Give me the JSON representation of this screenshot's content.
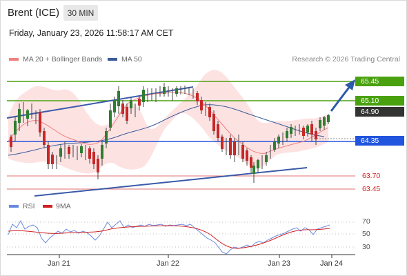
{
  "header": {
    "instrument": "Brent (ICE)",
    "timeframe": "30 MIN",
    "datetime": "Friday, January 23, 2026 11:58:17 AM CET",
    "copyright": "Research © 2026 Trading Central"
  },
  "legend": {
    "ma20": "MA 20 + Bollinger Bands",
    "ma50": "MA 50",
    "rsi": "RSI",
    "ma9": "9MA"
  },
  "colors": {
    "green_level": "#4aa10f",
    "blue_level": "#2255dd",
    "red_level": "#e07070",
    "current_price": "#333333",
    "bollinger_fill": "#fde2e2",
    "ma20": "#f08080",
    "ma50": "#3a5a9a",
    "rsi": "#6a8ae0",
    "ma9": "#d02020",
    "arrow": "#2a5aa8",
    "candle_up": "#2e7d32",
    "candle_down": "#c62828"
  },
  "levels": {
    "resistance_2": "65.45",
    "resistance_1": "65.10",
    "current": "64.90",
    "pivot": "64.35",
    "support_1": "63.70",
    "support_2": "63.45"
  },
  "rsi_axis": [
    "70",
    "50",
    "30"
  ],
  "x_axis": [
    "Jan 21",
    "Jan 22",
    "Jan 23",
    "Jan 24"
  ]
}
